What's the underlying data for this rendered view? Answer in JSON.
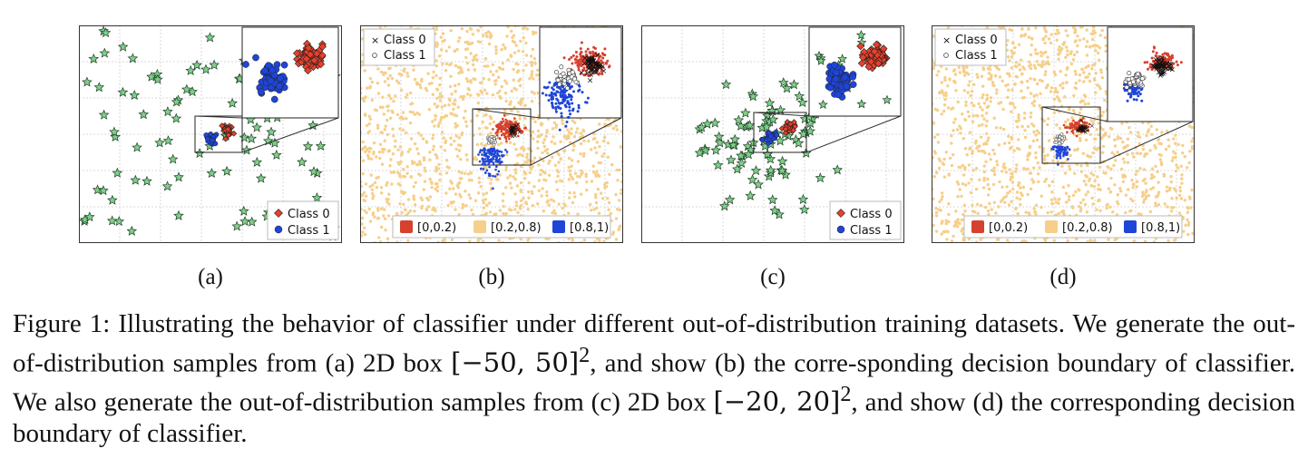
{
  "panels": [
    {
      "id": "a",
      "label": "(a)",
      "kind": "samples",
      "legend": [
        "Class 0",
        "Class 1"
      ],
      "ood_box": [
        -50,
        50
      ]
    },
    {
      "id": "b",
      "label": "(b)",
      "kind": "boundary",
      "marker_legend": [
        "Class 0",
        "Class 1"
      ],
      "bins": [
        "[0,0.2)",
        "[0.2,0.8)",
        "[0.8,1)"
      ]
    },
    {
      "id": "c",
      "label": "(c)",
      "kind": "samples",
      "legend": [
        "Class 0",
        "Class 1"
      ],
      "ood_box": [
        -20,
        20
      ]
    },
    {
      "id": "d",
      "label": "(d)",
      "kind": "boundary",
      "marker_legend": [
        "Class 0",
        "Class 1"
      ],
      "bins": [
        "[0,0.2)",
        "[0.2,0.8)",
        "[0.8,1)"
      ]
    }
  ],
  "colors": {
    "class0": "#e8402a",
    "class1": "#1f45d8",
    "ood": "#7fcf8a",
    "mid": "#f6cf8a",
    "low": "#d6402e",
    "high": "#1f45d8"
  },
  "caption": {
    "p1": "Figure 1: Illustrating the behavior of classifier under different out-of-distribution training datasets. We generate the out-of-distribution samples from (a) 2D box ",
    "m1": "[−50, 50]",
    "sup1": "2",
    "p2": ", and show (b) the corre-sponding decision boundary of classifier. We also generate the out-of-distribution samples from (c) 2D box ",
    "m2": "[−20, 20]",
    "sup2": "2",
    "p3": ", and show (d) the corresponding decision boundary of classifier."
  }
}
